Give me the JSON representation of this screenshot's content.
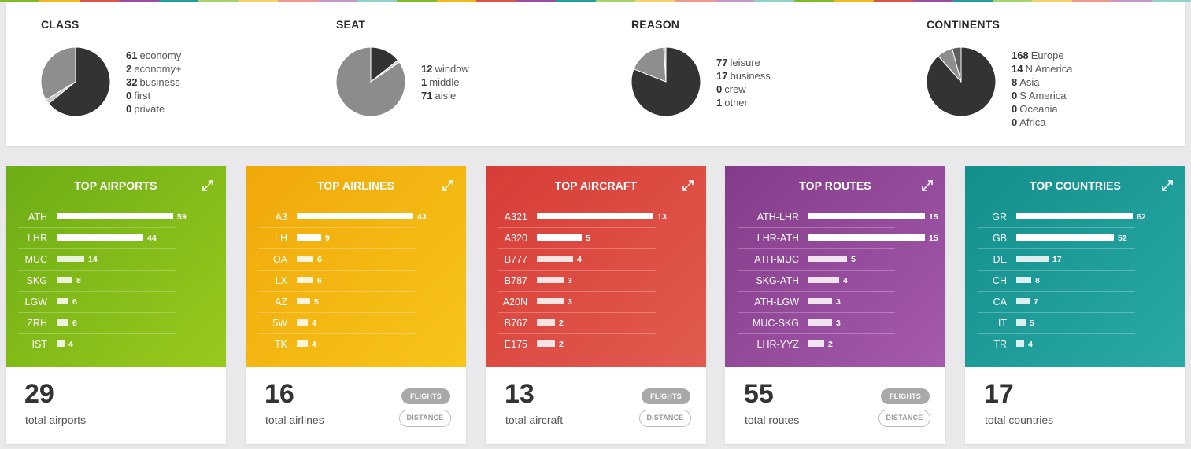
{
  "stripe_colors": [
    "#7cbb26",
    "#f3b81a",
    "#e05348",
    "#9c4d9f",
    "#1f9e9a",
    "#a8d26b",
    "#f7d36b",
    "#ee9890",
    "#c696c8",
    "#8fd0cc"
  ],
  "summary": [
    {
      "title": "CLASS",
      "items": [
        {
          "count": "61",
          "label": "economy",
          "value": 61
        },
        {
          "count": "2",
          "label": "economy+",
          "value": 2
        },
        {
          "count": "32",
          "label": "business",
          "value": 32
        },
        {
          "count": "0",
          "label": "first",
          "value": 0
        },
        {
          "count": "0",
          "label": "private",
          "value": 0
        }
      ],
      "colors": [
        "#333333",
        "#c9c9c9",
        "#8e8e8e",
        "#666666",
        "#aaaaaa"
      ]
    },
    {
      "title": "SEAT",
      "items": [
        {
          "count": "12",
          "label": "window",
          "value": 12
        },
        {
          "count": "1",
          "label": "middle",
          "value": 1
        },
        {
          "count": "71",
          "label": "aisle",
          "value": 71
        }
      ],
      "colors": [
        "#333333",
        "#cfcfcf",
        "#8c8c8c"
      ]
    },
    {
      "title": "REASON",
      "items": [
        {
          "count": "77",
          "label": "leisure",
          "value": 77
        },
        {
          "count": "17",
          "label": "business",
          "value": 17
        },
        {
          "count": "0",
          "label": "crew",
          "value": 0
        },
        {
          "count": "1",
          "label": "other",
          "value": 1
        }
      ],
      "colors": [
        "#333333",
        "#8e8e8e",
        "#666666",
        "#cfcfcf"
      ]
    },
    {
      "title": "CONTINENTS",
      "items": [
        {
          "count": "168",
          "label": "Europe",
          "value": 168
        },
        {
          "count": "14",
          "label": "N America",
          "value": 14
        },
        {
          "count": "8",
          "label": "Asia",
          "value": 8
        },
        {
          "count": "0",
          "label": "S America",
          "value": 0
        },
        {
          "count": "0",
          "label": "Oceania",
          "value": 0
        },
        {
          "count": "0",
          "label": "Africa",
          "value": 0
        }
      ],
      "colors": [
        "#333333",
        "#8e8e8e",
        "#5e5e5e",
        "#aaaaaa",
        "#cccccc",
        "#dddddd"
      ]
    }
  ],
  "cards": [
    {
      "title": "TOP AIRPORTS",
      "gradient": [
        "#6cad16",
        "#9ac91c"
      ],
      "max": 59,
      "rows": [
        {
          "label": "ATH",
          "value": 59
        },
        {
          "label": "LHR",
          "value": 44
        },
        {
          "label": "MUC",
          "value": 14
        },
        {
          "label": "SKG",
          "value": 8
        },
        {
          "label": "LGW",
          "value": 6
        },
        {
          "label": "ZRH",
          "value": 6
        },
        {
          "label": "IST",
          "value": 4
        }
      ],
      "total": "29",
      "total_label": "total airports",
      "buttons": []
    },
    {
      "title": "TOP AIRLINES",
      "gradient": [
        "#f0a80a",
        "#f7c51a"
      ],
      "max": 43,
      "rows": [
        {
          "label": "A3",
          "value": 43
        },
        {
          "label": "LH",
          "value": 9
        },
        {
          "label": "OA",
          "value": 6
        },
        {
          "label": "LX",
          "value": 6
        },
        {
          "label": "AZ",
          "value": 5
        },
        {
          "label": "5W",
          "value": 4
        },
        {
          "label": "TK",
          "value": 4
        }
      ],
      "total": "16",
      "total_label": "total airlines",
      "buttons": [
        "FLIGHTS",
        "DISTANCE"
      ]
    },
    {
      "title": "TOP AIRCRAFT",
      "gradient": [
        "#d73d38",
        "#e25b4e"
      ],
      "max": 13,
      "rows": [
        {
          "label": "A321",
          "value": 13
        },
        {
          "label": "A320",
          "value": 5
        },
        {
          "label": "B777",
          "value": 4
        },
        {
          "label": "B787",
          "value": 3
        },
        {
          "label": "A20N",
          "value": 3
        },
        {
          "label": "B767",
          "value": 2
        },
        {
          "label": "E175",
          "value": 2
        }
      ],
      "total": "13",
      "total_label": "total aircraft",
      "buttons": [
        "FLIGHTS",
        "DISTANCE"
      ]
    },
    {
      "title": "TOP ROUTES",
      "gradient": [
        "#843c8a",
        "#a55aab"
      ],
      "max": 15,
      "rows": [
        {
          "label": "ATH-LHR",
          "value": 15
        },
        {
          "label": "LHR-ATH",
          "value": 15
        },
        {
          "label": "ATH-MUC",
          "value": 5
        },
        {
          "label": "SKG-ATH",
          "value": 4
        },
        {
          "label": "ATH-LGW",
          "value": 3
        },
        {
          "label": "MUC-SKG",
          "value": 3
        },
        {
          "label": "LHR-YYZ",
          "value": 2
        }
      ],
      "total": "55",
      "total_label": "total routes",
      "buttons": [
        "FLIGHTS",
        "DISTANCE"
      ]
    },
    {
      "title": "TOP COUNTRIES",
      "gradient": [
        "#138f8c",
        "#2aa9a5"
      ],
      "max": 62,
      "rows": [
        {
          "label": "GR",
          "value": 62
        },
        {
          "label": "GB",
          "value": 52
        },
        {
          "label": "DE",
          "value": 17
        },
        {
          "label": "CH",
          "value": 8
        },
        {
          "label": "CA",
          "value": 7
        },
        {
          "label": "IT",
          "value": 5
        },
        {
          "label": "TR",
          "value": 4
        }
      ],
      "total": "17",
      "total_label": "total countries",
      "buttons": []
    }
  ],
  "icons": {
    "expand": "expand-arrows-icon"
  }
}
